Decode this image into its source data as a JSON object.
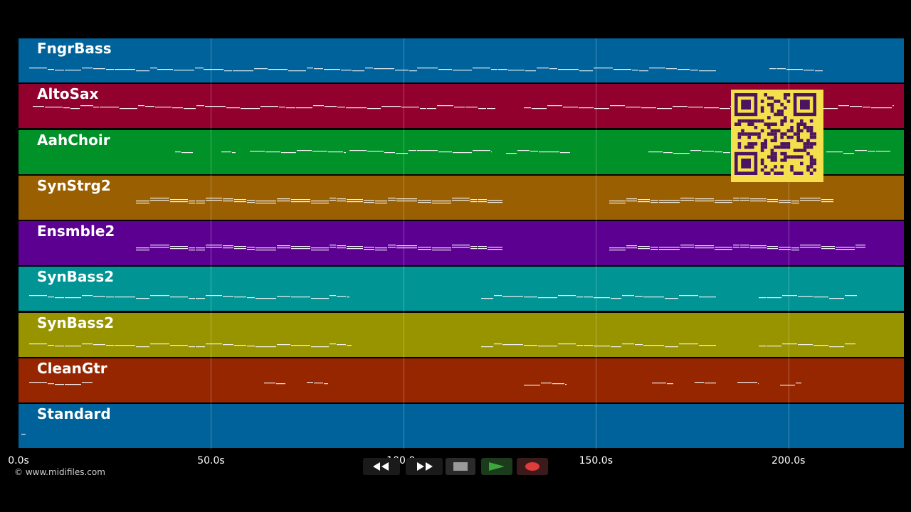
{
  "timeline": {
    "ticks": [
      "0.0s",
      "50.0s",
      "100.0s",
      "150.0s",
      "200.0s"
    ],
    "tick_seconds": [
      0,
      50,
      100,
      150,
      200
    ],
    "duration_seconds": 230
  },
  "tracks": [
    {
      "name": "FngrBass",
      "color": "#00629a"
    },
    {
      "name": "AltoSax",
      "color": "#92002d"
    },
    {
      "name": "AahChoir",
      "color": "#009128"
    },
    {
      "name": "SynStrg2",
      "color": "#9a5f00"
    },
    {
      "name": "Ensmble2",
      "color": "#5c0092"
    },
    {
      "name": "SynBass2",
      "color": "#009494"
    },
    {
      "name": "SynBass2",
      "color": "#979400"
    },
    {
      "name": "CleanGtr",
      "color": "#962600"
    },
    {
      "name": "Standard",
      "color": "#00629a"
    }
  ],
  "watermark": {
    "credit": "© www.midifiles.com"
  },
  "transport": {
    "rewind_icon": "rewind-icon",
    "fast_forward_icon": "fast-forward-icon",
    "stop_icon": "stop-icon",
    "play_icon": "play-icon",
    "record_icon": "record-icon",
    "colors": {
      "play": "#3aa83a",
      "record": "#e03c3c",
      "stop": "#9a9a9a"
    }
  },
  "qr_code": {
    "icon": "qr-code-icon",
    "colors": {
      "fg": "#4a1460",
      "bg": "#f4e04d"
    }
  }
}
